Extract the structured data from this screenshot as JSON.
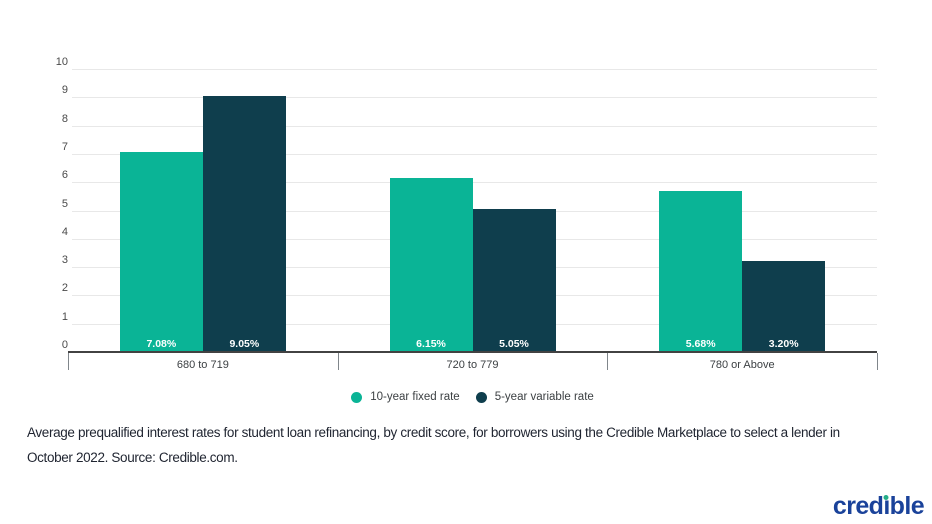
{
  "chart_data": {
    "type": "bar",
    "title": "",
    "categories": [
      "680 to 719",
      "720 to 779",
      "780 or Above"
    ],
    "series": [
      {
        "name": "10-year fixed rate",
        "color": "#0ab496",
        "values": [
          7.08,
          6.15,
          5.68
        ],
        "bar_labels": [
          "7.08%",
          "6.15%",
          "5.68%"
        ]
      },
      {
        "name": "5-year variable rate",
        "color": "#0f3e4d",
        "values": [
          9.05,
          5.05,
          3.2
        ],
        "bar_labels": [
          "9.05%",
          "5.05%",
          "3.20%"
        ]
      }
    ],
    "y_axis": {
      "min": 0,
      "max": 10,
      "step": 1,
      "tick_labels": [
        "0",
        "1",
        "2",
        "3",
        "4",
        "5",
        "6",
        "7",
        "8",
        "9",
        "10"
      ]
    },
    "grid": true,
    "legend_position": "bottom"
  },
  "caption": {
    "line1": "Average prequalified interest rates for student loan refinancing, by credit score, for borrowers using the Credible Marketplace to select a lender in",
    "line2": "October 2022. Source: Credible.com."
  },
  "logo": {
    "text": "credible",
    "color": "#1a429a",
    "dot_color": "#25ae88"
  }
}
